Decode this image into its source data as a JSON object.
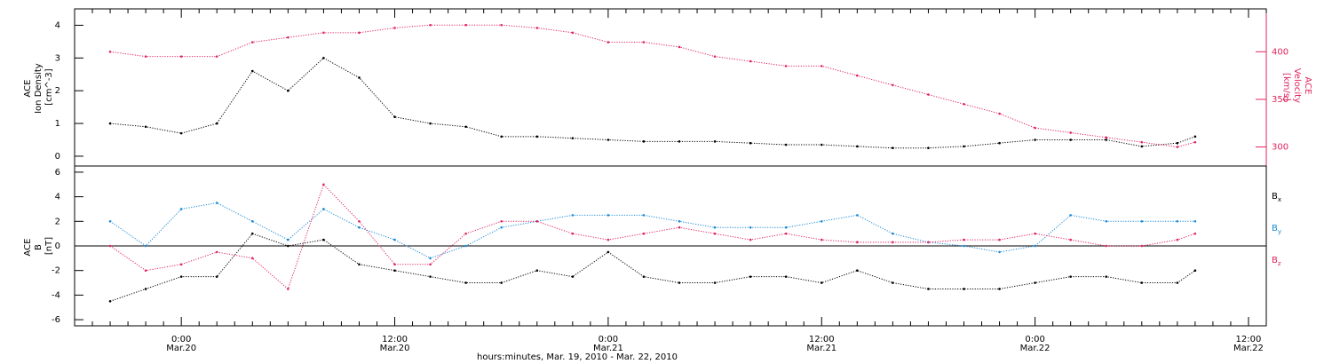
{
  "chart_data": [
    {
      "type": "scatter",
      "panel": "plasma",
      "ylabel_lines": [
        "ACE",
        "Ion Density",
        "[cm^-3]"
      ],
      "y2label_lines": [
        "ACE",
        "Velocity",
        "[km/s]"
      ],
      "ylim": [
        -0.3,
        4.5
      ],
      "y2lim": [
        280,
        445
      ],
      "yticks": [
        0,
        1,
        2,
        3,
        4
      ],
      "y2ticks": [
        300,
        350,
        400
      ],
      "xlim": [
        -6,
        61
      ],
      "series": [
        {
          "key": "density",
          "color": "#000000",
          "axis": "left",
          "x": [
            -4,
            -2,
            0,
            2,
            4,
            6,
            8,
            10,
            12,
            14,
            16,
            18,
            20,
            22,
            24,
            26,
            28,
            30,
            32,
            34,
            36,
            38,
            40,
            42,
            44,
            46,
            48,
            50,
            52,
            54,
            56,
            57
          ],
          "y": [
            1.0,
            0.9,
            0.7,
            1.0,
            2.6,
            2.0,
            3.0,
            2.4,
            1.2,
            1.0,
            0.9,
            0.6,
            0.6,
            0.55,
            0.5,
            0.45,
            0.45,
            0.45,
            0.4,
            0.35,
            0.35,
            0.3,
            0.25,
            0.25,
            0.3,
            0.4,
            0.5,
            0.5,
            0.5,
            0.3,
            0.4,
            0.6
          ]
        },
        {
          "key": "velocity",
          "color": "#e0245e",
          "axis": "right",
          "x": [
            -4,
            -2,
            0,
            2,
            4,
            6,
            8,
            10,
            12,
            14,
            16,
            18,
            20,
            22,
            24,
            26,
            28,
            30,
            32,
            34,
            36,
            38,
            40,
            42,
            44,
            46,
            48,
            50,
            52,
            54,
            56,
            57
          ],
          "y": [
            400,
            395,
            395,
            395,
            410,
            415,
            420,
            420,
            425,
            428,
            428,
            428,
            425,
            420,
            410,
            410,
            405,
            395,
            390,
            385,
            385,
            375,
            365,
            355,
            345,
            335,
            320,
            315,
            310,
            305,
            300,
            305
          ]
        }
      ]
    },
    {
      "type": "scatter",
      "panel": "magnetic",
      "ylabel_lines": [
        "ACE",
        "B",
        "[nT]"
      ],
      "ylim": [
        -6.5,
        6.5
      ],
      "yticks": [
        -6,
        -4,
        -2,
        0,
        2,
        4,
        6
      ],
      "zero_line": true,
      "xlim": [
        -6,
        61
      ],
      "series": [
        {
          "key": "bx",
          "name": "B",
          "sub": "x",
          "color": "#000000",
          "x": [
            -4,
            -2,
            0,
            2,
            4,
            6,
            8,
            10,
            12,
            14,
            16,
            18,
            20,
            22,
            24,
            26,
            28,
            30,
            32,
            34,
            36,
            38,
            40,
            42,
            44,
            46,
            48,
            50,
            52,
            54,
            56,
            57
          ],
          "y": [
            -4.5,
            -3.5,
            -2.5,
            -2.5,
            1.0,
            0,
            0.5,
            -1.5,
            -2.0,
            -2.5,
            -3.0,
            -3.0,
            -2.0,
            -2.5,
            -0.5,
            -2.5,
            -3.0,
            -3.0,
            -2.5,
            -2.5,
            -3.0,
            -2.0,
            -3.0,
            -3.5,
            -3.5,
            -3.5,
            -3.0,
            -2.5,
            -2.5,
            -3.0,
            -3.0,
            -2.0
          ]
        },
        {
          "key": "by",
          "name": "B",
          "sub": "y",
          "color": "#1a8ad8",
          "x": [
            -4,
            -2,
            0,
            2,
            4,
            6,
            8,
            10,
            12,
            14,
            16,
            18,
            20,
            22,
            24,
            26,
            28,
            30,
            32,
            34,
            36,
            38,
            40,
            42,
            44,
            46,
            48,
            50,
            52,
            54,
            56,
            57
          ],
          "y": [
            2.0,
            0,
            3.0,
            3.5,
            2.0,
            0.5,
            3.0,
            1.5,
            0.5,
            -1.0,
            0,
            1.5,
            2.0,
            2.5,
            2.5,
            2.5,
            2.0,
            1.5,
            1.5,
            1.5,
            2.0,
            2.5,
            1.0,
            0.3,
            0,
            -0.5,
            0,
            2.5,
            2.0,
            2.0,
            2.0,
            2.0
          ]
        },
        {
          "key": "bz",
          "name": "B",
          "sub": "z",
          "color": "#e0245e",
          "x": [
            -4,
            -2,
            0,
            2,
            4,
            6,
            8,
            10,
            12,
            14,
            16,
            18,
            20,
            22,
            24,
            26,
            28,
            30,
            32,
            34,
            36,
            38,
            40,
            42,
            44,
            46,
            48,
            50,
            52,
            54,
            56,
            57
          ],
          "y": [
            0,
            -2.0,
            -1.5,
            -0.5,
            -1.0,
            -3.5,
            5.0,
            2.0,
            -1.5,
            -1.5,
            1.0,
            2.0,
            2.0,
            1.0,
            0.5,
            1.0,
            1.5,
            1.0,
            0.5,
            1.0,
            0.5,
            0.3,
            0.3,
            0.3,
            0.5,
            0.5,
            1.0,
            0.5,
            0,
            0,
            0.5,
            1.0
          ]
        }
      ]
    }
  ],
  "x_axis": {
    "ticks": [
      {
        "x": 0,
        "line1": "0:00",
        "line2": "Mar.20"
      },
      {
        "x": 12,
        "line1": "12:00",
        "line2": "Mar.20"
      },
      {
        "x": 24,
        "line1": "0:00",
        "line2": "Mar.21"
      },
      {
        "x": 36,
        "line1": "12:00",
        "line2": "Mar.21"
      },
      {
        "x": 48,
        "line1": "0:00",
        "line2": "Mar.22"
      },
      {
        "x": 60,
        "line1": "12:00",
        "line2": "Mar.22"
      }
    ],
    "title": "hours:minutes, Mar. 19, 2010 - Mar. 22, 2010"
  },
  "colors": {
    "black": "#000000",
    "blue": "#1a8ad8",
    "red": "#e0245e"
  }
}
